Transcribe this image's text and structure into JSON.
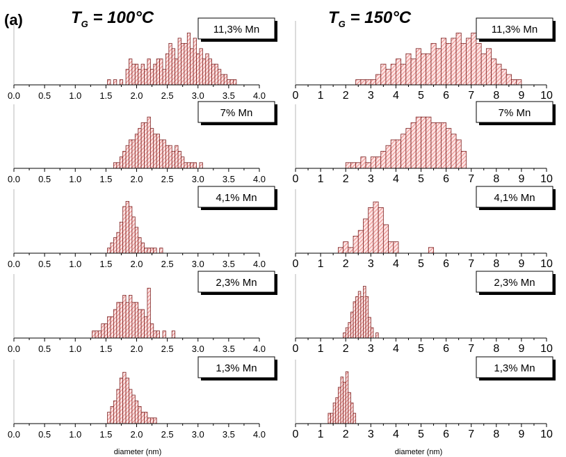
{
  "panel_label": "(a)",
  "columns": [
    {
      "title_main": "T",
      "title_sub": "G",
      "title_rest": " = 100°C"
    },
    {
      "title_main": "T",
      "title_sub": "G",
      "title_rest": " = 150°C"
    }
  ],
  "chart_data": [
    {
      "type": "bar",
      "column": 0,
      "row": 0,
      "annotation": "11,3% Mn",
      "xlabel": "",
      "xlim": [
        0,
        4.0
      ],
      "xticks": [
        "0.0",
        "0.5",
        "1.0",
        "1.5",
        "2.0",
        "2.5",
        "3.0",
        "3.5",
        "4.0"
      ],
      "bin_width": 0.05,
      "x": [
        1.55,
        1.65,
        1.75,
        1.85,
        1.9,
        1.95,
        2.0,
        2.05,
        2.1,
        2.15,
        2.2,
        2.25,
        2.3,
        2.35,
        2.4,
        2.45,
        2.5,
        2.55,
        2.6,
        2.65,
        2.7,
        2.75,
        2.8,
        2.85,
        2.9,
        2.95,
        3.0,
        3.05,
        3.1,
        3.15,
        3.2,
        3.25,
        3.3,
        3.35,
        3.4,
        3.45,
        3.5,
        3.55,
        3.6
      ],
      "values": [
        1,
        1,
        1,
        3,
        5,
        4,
        4,
        3,
        4,
        3,
        5,
        3,
        4,
        5,
        5,
        3,
        6,
        8,
        7,
        5,
        9,
        8,
        8,
        10,
        7,
        9,
        6,
        7,
        5,
        6,
        5,
        4,
        4,
        3,
        2,
        2,
        1,
        1,
        1
      ],
      "ylim": [
        0,
        11
      ]
    },
    {
      "type": "bar",
      "column": 0,
      "row": 1,
      "annotation": "7% Mn",
      "xlabel": "",
      "xlim": [
        0,
        4.0
      ],
      "xticks": [
        "0.0",
        "0.5",
        "1.0",
        "1.5",
        "2.0",
        "2.5",
        "3.0",
        "3.5",
        "4.0"
      ],
      "bin_width": 0.05,
      "x": [
        1.65,
        1.7,
        1.75,
        1.8,
        1.85,
        1.9,
        1.95,
        2.0,
        2.05,
        2.1,
        2.15,
        2.2,
        2.25,
        2.3,
        2.35,
        2.4,
        2.45,
        2.5,
        2.55,
        2.6,
        2.65,
        2.7,
        2.75,
        2.8,
        2.85,
        2.9,
        2.95,
        3.05
      ],
      "values": [
        1,
        1,
        2,
        3,
        4,
        5,
        5,
        6,
        7,
        8,
        8,
        9,
        7,
        6,
        6,
        5,
        5,
        4,
        4,
        3,
        4,
        3,
        2,
        1,
        1,
        1,
        1,
        1
      ],
      "ylim": [
        0,
        10
      ]
    },
    {
      "type": "bar",
      "column": 0,
      "row": 2,
      "annotation": "4,1% Mn",
      "xlabel": "",
      "xlim": [
        0,
        4.0
      ],
      "xticks": [
        "0.0",
        "0.5",
        "1.0",
        "1.5",
        "2.0",
        "2.5",
        "3.0",
        "3.5",
        "4.0"
      ],
      "bin_width": 0.05,
      "x": [
        1.55,
        1.6,
        1.65,
        1.7,
        1.75,
        1.8,
        1.85,
        1.9,
        1.95,
        2.0,
        2.05,
        2.1,
        2.15,
        2.2,
        2.25,
        2.3,
        2.4
      ],
      "values": [
        1,
        2,
        3,
        4,
        6,
        9,
        10,
        9,
        7,
        5,
        3,
        2,
        1,
        1,
        1,
        1,
        1
      ],
      "ylim": [
        0,
        11
      ]
    },
    {
      "type": "bar",
      "column": 0,
      "row": 3,
      "annotation": "2,3% Mn",
      "xlabel": "",
      "xlim": [
        0,
        4.0
      ],
      "xticks": [
        "0.0",
        "0.5",
        "1.0",
        "1.5",
        "2.0",
        "2.5",
        "3.0",
        "3.5",
        "4.0"
      ],
      "bin_width": 0.05,
      "x": [
        1.3,
        1.35,
        1.4,
        1.45,
        1.5,
        1.55,
        1.6,
        1.65,
        1.7,
        1.75,
        1.8,
        1.85,
        1.9,
        1.95,
        2.0,
        2.05,
        2.1,
        2.15,
        2.2,
        2.25,
        2.3,
        2.35,
        2.45,
        2.6
      ],
      "values": [
        1,
        1,
        1,
        2,
        2,
        3,
        3,
        4,
        5,
        5,
        6,
        5,
        6,
        5,
        5,
        4,
        4,
        3,
        7,
        2,
        1,
        1,
        1,
        1
      ],
      "ylim": [
        0,
        8
      ]
    },
    {
      "type": "bar",
      "column": 0,
      "row": 4,
      "annotation": "1,3% Mn",
      "xlabel": "diameter (nm)",
      "xlim": [
        0,
        4.0
      ],
      "xticks": [
        "0.0",
        "0.5",
        "1.0",
        "1.5",
        "2.0",
        "2.5",
        "3.0",
        "3.5",
        "4.0"
      ],
      "bin_width": 0.05,
      "x": [
        1.55,
        1.6,
        1.65,
        1.7,
        1.75,
        1.8,
        1.85,
        1.9,
        1.95,
        2.0,
        2.05,
        2.1,
        2.15,
        2.2,
        2.25,
        2.3
      ],
      "values": [
        2,
        3,
        4,
        6,
        8,
        9,
        8,
        6,
        5,
        4,
        3,
        2,
        2,
        1,
        1,
        1
      ],
      "ylim": [
        0,
        10
      ]
    },
    {
      "type": "bar",
      "column": 1,
      "row": 0,
      "annotation": "11,3% Mn",
      "xlabel": "",
      "xlim": [
        0,
        10
      ],
      "xticks": [
        "0",
        "1",
        "2",
        "3",
        "4",
        "5",
        "6",
        "7",
        "8",
        "9",
        "10"
      ],
      "bin_width": 0.2,
      "x": [
        2.5,
        2.7,
        2.9,
        3.1,
        3.3,
        3.5,
        3.7,
        3.9,
        4.1,
        4.3,
        4.5,
        4.7,
        4.9,
        5.1,
        5.3,
        5.5,
        5.7,
        5.9,
        6.1,
        6.3,
        6.5,
        6.7,
        6.9,
        7.1,
        7.3,
        7.5,
        7.7,
        7.9,
        8.1,
        8.3,
        8.5,
        8.7,
        8.9
      ],
      "values": [
        1,
        1,
        1,
        1,
        2,
        4,
        3,
        4,
        5,
        4,
        6,
        5,
        7,
        6,
        6,
        8,
        7,
        9,
        8,
        9,
        10,
        8,
        9,
        10,
        8,
        6,
        7,
        5,
        4,
        3,
        2,
        1,
        1
      ],
      "ylim": [
        0,
        11
      ]
    },
    {
      "type": "bar",
      "column": 1,
      "row": 1,
      "annotation": "7% Mn",
      "xlabel": "",
      "xlim": [
        0,
        10
      ],
      "xticks": [
        "0",
        "1",
        "2",
        "3",
        "4",
        "5",
        "6",
        "7",
        "8",
        "9",
        "10"
      ],
      "bin_width": 0.2,
      "x": [
        2.1,
        2.3,
        2.5,
        2.7,
        2.9,
        3.1,
        3.3,
        3.5,
        3.7,
        3.9,
        4.1,
        4.3,
        4.5,
        4.7,
        4.9,
        5.1,
        5.3,
        5.5,
        5.7,
        5.9,
        6.1,
        6.3,
        6.5,
        6.7
      ],
      "values": [
        1,
        1,
        1,
        2,
        1,
        2,
        2,
        3,
        4,
        5,
        5,
        6,
        7,
        8,
        9,
        9,
        9,
        8,
        8,
        8,
        7,
        6,
        5,
        3
      ],
      "ylim": [
        0,
        10
      ]
    },
    {
      "type": "bar",
      "column": 1,
      "row": 2,
      "annotation": "4,1% Mn",
      "xlabel": "",
      "xlim": [
        0,
        10
      ],
      "xticks": [
        "0",
        "1",
        "2",
        "3",
        "4",
        "5",
        "6",
        "7",
        "8",
        "9",
        "10"
      ],
      "bin_width": 0.2,
      "x": [
        1.8,
        2.0,
        2.2,
        2.4,
        2.6,
        2.8,
        3.0,
        3.2,
        3.4,
        3.6,
        3.8,
        4.0,
        5.4
      ],
      "values": [
        1,
        2,
        1,
        3,
        4,
        6,
        8,
        9,
        8,
        5,
        2,
        2,
        1
      ],
      "ylim": [
        0,
        10
      ]
    },
    {
      "type": "bar",
      "column": 1,
      "row": 3,
      "annotation": "2,3% Mn",
      "xlabel": "",
      "xlim": [
        0,
        10
      ],
      "xticks": [
        "0",
        "1",
        "2",
        "3",
        "4",
        "5",
        "6",
        "7",
        "8",
        "9",
        "10"
      ],
      "bin_width": 0.1,
      "x": [
        1.95,
        2.05,
        2.15,
        2.25,
        2.35,
        2.45,
        2.55,
        2.65,
        2.75,
        2.85,
        2.95,
        3.05,
        3.25
      ],
      "values": [
        1,
        2,
        3,
        5,
        7,
        8,
        9,
        8,
        10,
        8,
        4,
        2,
        1
      ],
      "ylim": [
        0,
        11
      ]
    },
    {
      "type": "bar",
      "column": 1,
      "row": 4,
      "annotation": "1,3% Mn",
      "xlabel": "diameter (nm)",
      "xlim": [
        0,
        10
      ],
      "xticks": [
        "0",
        "1",
        "2",
        "3",
        "4",
        "5",
        "6",
        "7",
        "8",
        "9",
        "10"
      ],
      "bin_width": 0.1,
      "x": [
        1.35,
        1.45,
        1.55,
        1.65,
        1.75,
        1.85,
        1.95,
        2.05,
        2.15,
        2.25,
        2.35
      ],
      "values": [
        2,
        2,
        4,
        5,
        7,
        9,
        8,
        10,
        6,
        4,
        2
      ],
      "ylim": [
        0,
        11
      ]
    }
  ],
  "style": {
    "bar_fill": "#fde4e4",
    "hatch_color": "#e0605a",
    "bar_edge": "#7a1f1f",
    "axis_color": "#000000"
  }
}
